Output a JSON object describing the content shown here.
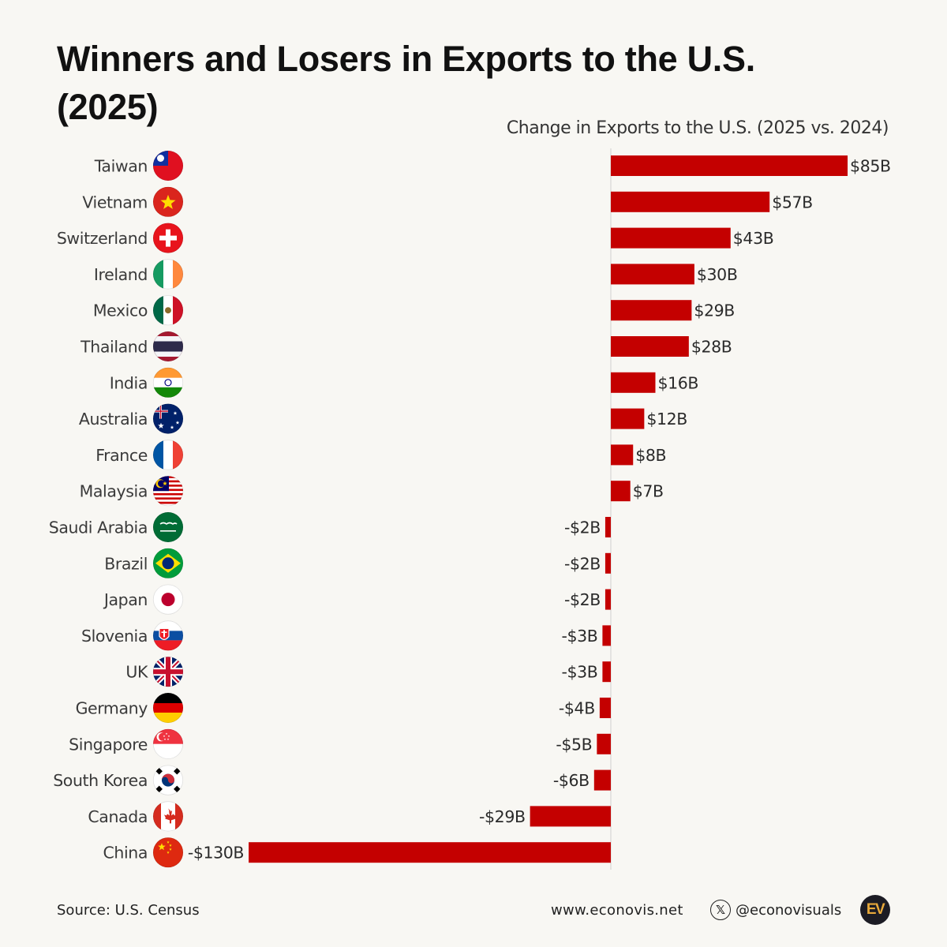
{
  "title_line1": "Winners and Losers in Exports to the U.S.",
  "title_line2": "(2025)",
  "footer": {
    "source": "Source: U.S. Census",
    "website": "www.econovis.net",
    "handle": "@econovisuals",
    "x_icon": "x-logo-icon",
    "logo_text": "EV"
  },
  "colors": {
    "bar": "#c40000",
    "background": "#f8f7f3",
    "axis": "#cfcfcf",
    "logo_bg": "#1c1c24",
    "logo_fg": "#e8a93a"
  },
  "chart_data": {
    "type": "bar",
    "orientation": "horizontal",
    "xlabel": "Change in Exports to the U.S. (2025 vs. 2024)",
    "unit": "billion USD",
    "categories": [
      "Taiwan",
      "Vietnam",
      "Switzerland",
      "Ireland",
      "Mexico",
      "Thailand",
      "India",
      "Australia",
      "France",
      "Malaysia",
      "Saudi Arabia",
      "Brazil",
      "Japan",
      "Slovenia",
      "UK",
      "Germany",
      "Singapore",
      "South Korea",
      "Canada",
      "China"
    ],
    "values": [
      85,
      57,
      43,
      30,
      29,
      28,
      16,
      12,
      8,
      7,
      -2,
      -2,
      -2,
      -3,
      -3,
      -4,
      -5,
      -6,
      -29,
      -130
    ],
    "labels": [
      "$85B",
      "$57B",
      "$43B",
      "$30B",
      "$29B",
      "$28B",
      "$16B",
      "$12B",
      "$8B",
      "$7B",
      "-$2B",
      "-$2B",
      "-$2B",
      "-$3B",
      "-$3B",
      "-$4B",
      "-$5B",
      "-$6B",
      "-$29B",
      "-$130B"
    ],
    "icons": [
      "flag-taiwan-icon",
      "flag-vietnam-icon",
      "flag-switzerland-icon",
      "flag-ireland-icon",
      "flag-mexico-icon",
      "flag-thailand-icon",
      "flag-india-icon",
      "flag-australia-icon",
      "flag-france-icon",
      "flag-malaysia-icon",
      "flag-saudi-arabia-icon",
      "flag-brazil-icon",
      "flag-japan-icon",
      "flag-slovakia-icon",
      "flag-uk-icon",
      "flag-germany-icon",
      "flag-singapore-icon",
      "flag-south-korea-icon",
      "flag-canada-icon",
      "flag-china-icon"
    ],
    "xlim": [
      -130,
      85
    ],
    "legend": "none",
    "grid": false
  }
}
